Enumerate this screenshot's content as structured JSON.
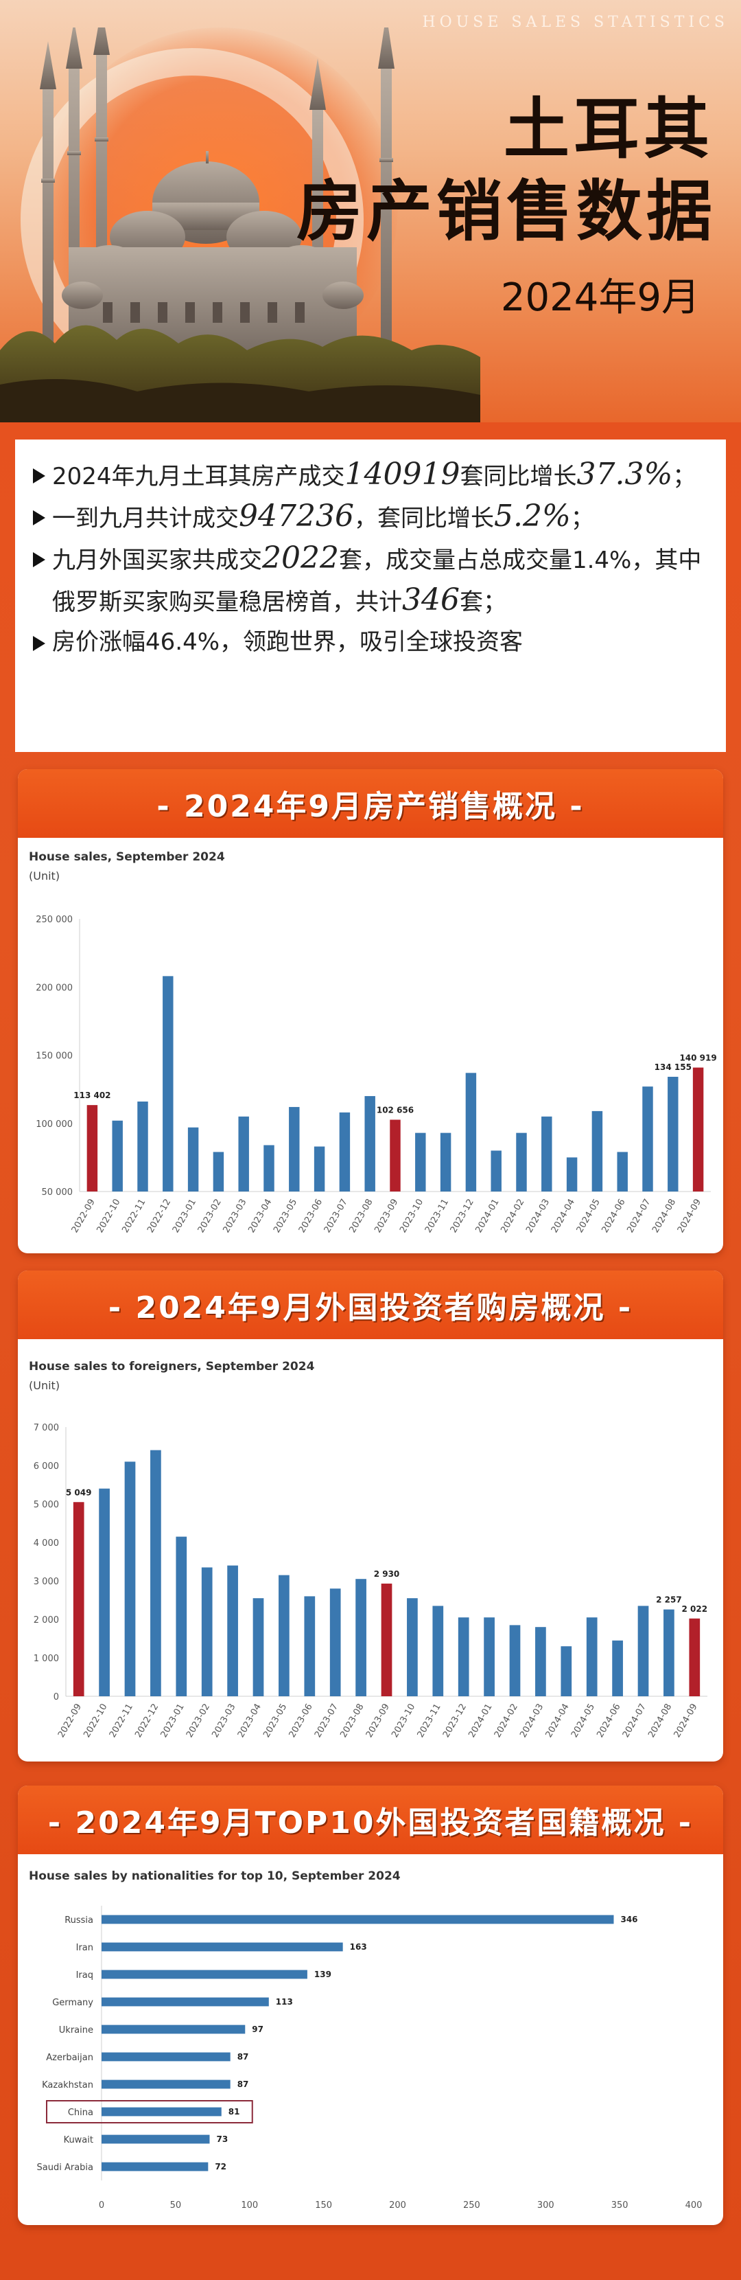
{
  "header": {
    "kicker": "HOUSE SALES STATISTICS",
    "title_line1": "土耳其",
    "title_line2": "房产销售数据",
    "subtitle": "2024年9月"
  },
  "summary": {
    "b1": {
      "t1": "2024年九月土耳其房产成交",
      "n1": "140919",
      "t2": "套同比增长",
      "n2": "37.3%",
      "t3": "；"
    },
    "b2": {
      "t1": "一到九月共计成交",
      "n1": "947236",
      "t2": "，套同比增长",
      "n2": "5.2%",
      "t3": "；"
    },
    "b3": {
      "t1": "九月外国买家共成交",
      "n1": "2022",
      "t2": "套，成交量占总成交量1.4%，其中俄罗斯买家购买量稳居榜首，共计",
      "n2": "346",
      "t3": "套；"
    },
    "b4": {
      "t1": "房价涨幅46.4%，领跑世界，吸引全球投资客"
    }
  },
  "colors": {
    "bar": "#3a78b0",
    "highlight": "#b2202a",
    "accent": "#e64a14"
  },
  "panels": {
    "sales": {
      "heading": "- 2024年9月房产销售概况 -"
    },
    "foreign": {
      "heading": "- 2024年9月外国投资者购房概况 -"
    },
    "nationality": {
      "heading": "- 2024年9月TOP10外国投资者国籍概况 -"
    }
  },
  "chart_data": [
    {
      "type": "bar",
      "title": "House sales, September 2024",
      "unit": "(Unit)",
      "categories": [
        "2022-09",
        "2022-10",
        "2022-11",
        "2022-12",
        "2023-01",
        "2023-02",
        "2023-03",
        "2023-04",
        "2023-05",
        "2023-06",
        "2023-07",
        "2023-08",
        "2023-09",
        "2023-10",
        "2023-11",
        "2023-12",
        "2024-01",
        "2024-02",
        "2024-03",
        "2024-04",
        "2024-05",
        "2024-06",
        "2024-07",
        "2024-08",
        "2024-09"
      ],
      "values": [
        113402,
        102000,
        116000,
        208000,
        97000,
        79000,
        105000,
        84000,
        112000,
        83000,
        108000,
        120000,
        102656,
        93000,
        93000,
        137000,
        80000,
        93000,
        105000,
        75000,
        109000,
        79000,
        127000,
        134155,
        140919
      ],
      "highlight": [
        0,
        12,
        24
      ],
      "data_labels": {
        "0": "113 402",
        "12": "102 656",
        "23": "134 155",
        "24": "140 919"
      },
      "ylim": [
        50000,
        250000
      ],
      "yticks": [
        50000,
        100000,
        150000,
        200000,
        250000
      ],
      "ytick_labels": [
        "50 000",
        "100 000",
        "150 000",
        "200 000",
        "250 000"
      ]
    },
    {
      "type": "bar",
      "title": "House sales to foreigners, September 2024",
      "unit": "(Unit)",
      "categories": [
        "2022-09",
        "2022-10",
        "2022-11",
        "2022-12",
        "2023-01",
        "2023-02",
        "2023-03",
        "2023-04",
        "2023-05",
        "2023-06",
        "2023-07",
        "2023-08",
        "2023-09",
        "2023-10",
        "2023-11",
        "2023-12",
        "2024-01",
        "2024-02",
        "2024-03",
        "2024-04",
        "2024-05",
        "2024-06",
        "2024-07",
        "2024-08",
        "2024-09"
      ],
      "values": [
        5049,
        5400,
        6100,
        6400,
        4150,
        3350,
        3400,
        2550,
        3150,
        2600,
        2800,
        3050,
        2930,
        2550,
        2350,
        2050,
        2050,
        1850,
        1800,
        1300,
        2050,
        1450,
        2350,
        2257,
        2022
      ],
      "highlight": [
        0,
        12,
        24
      ],
      "data_labels": {
        "0": "5 049",
        "12": "2 930",
        "23": "2 257",
        "24": "2 022"
      },
      "ylim": [
        0,
        7000
      ],
      "yticks": [
        0,
        1000,
        2000,
        3000,
        4000,
        5000,
        6000,
        7000
      ],
      "ytick_labels": [
        "0",
        "1 000",
        "2 000",
        "3 000",
        "4 000",
        "5 000",
        "6 000",
        "7 000"
      ]
    },
    {
      "type": "bar",
      "orientation": "horizontal",
      "title": "House sales by nationalities for top 10, September 2024",
      "categories": [
        "Russia",
        "Iran",
        "Iraq",
        "Germany",
        "Ukraine",
        "Azerbaijan",
        "Kazakhstan",
        "China",
        "Kuwait",
        "Saudi Arabia"
      ],
      "values": [
        346,
        163,
        139,
        113,
        97,
        87,
        87,
        81,
        73,
        72
      ],
      "highlight_box": "China",
      "xlim": [
        0,
        400
      ],
      "xticks": [
        0,
        50,
        100,
        150,
        200,
        250,
        300,
        350,
        400
      ]
    }
  ]
}
